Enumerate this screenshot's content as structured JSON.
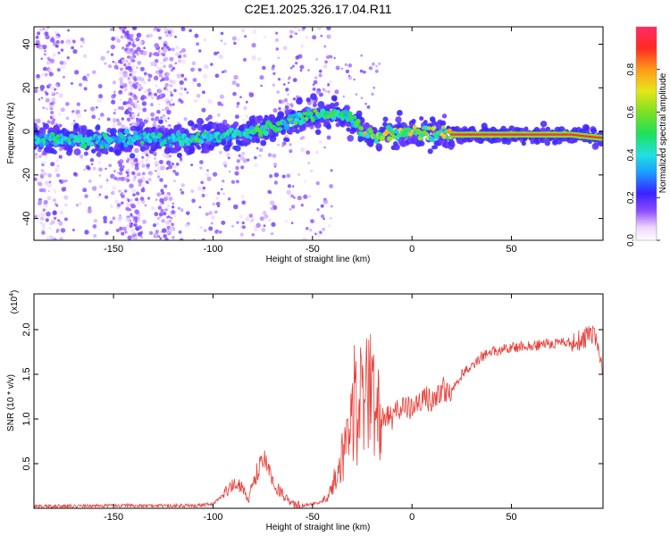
{
  "title": "C2E1.2025.326.17.04.R11",
  "chart_data": [
    {
      "type": "heatmap",
      "xlabel": "Height of straight line (km)",
      "ylabel": "Frequency (Hz)",
      "xlim": [
        -190,
        96
      ],
      "ylim": [
        -50,
        48
      ],
      "xticks": [
        -150,
        -100,
        -50,
        0,
        50
      ],
      "xtick_labels": [
        "-150",
        "-100",
        "-50",
        "0",
        "50"
      ],
      "yticks": [
        -40,
        -20,
        0,
        20,
        40
      ],
      "ytick_labels": [
        "-40",
        "-20",
        "0",
        "20",
        "40"
      ],
      "colorbar": {
        "label": "Normalized spectral amplitude",
        "range": [
          0,
          1
        ],
        "ticks": [
          0.0,
          0.2,
          0.4,
          0.6,
          0.8
        ],
        "tick_labels": [
          "0.0",
          "0.2",
          "0.4",
          "0.6",
          "0.8"
        ]
      },
      "ridge": {
        "x": [
          -190,
          -160,
          -130,
          -110,
          -95,
          -85,
          -75,
          -65,
          -57,
          -50,
          -42,
          -35,
          -28,
          -24,
          -20,
          -12,
          -5,
          0,
          10,
          20,
          40,
          60,
          80,
          90,
          96
        ],
        "freq": [
          -3,
          -4,
          -3,
          -4,
          -2,
          -1,
          1,
          3,
          6,
          7,
          8,
          7,
          4,
          0,
          -2,
          -1,
          0,
          0,
          -1,
          -1.5,
          -1.5,
          -1.5,
          -1.5,
          -2.5,
          -3
        ]
      }
    },
    {
      "type": "line",
      "xlabel": "Height of straight line (km)",
      "ylabel": "SNR (10 * v/v)",
      "y_scale_label": "(x10",
      "y_scale_exp": "4",
      "y_scale_close": ")",
      "xlim": [
        -190,
        96
      ],
      "ylim": [
        0,
        2.4
      ],
      "xticks": [
        -150,
        -100,
        -50,
        0,
        50
      ],
      "xtick_labels": [
        "-150",
        "-100",
        "-50",
        "0",
        "50"
      ],
      "yticks": [
        0.5,
        1.0,
        1.5,
        2.0
      ],
      "ytick_labels": [
        "0.5",
        "1.0",
        "1.5",
        "2.0"
      ],
      "series": [
        {
          "name": "SNR",
          "color": "#e8403a",
          "x": [
            -190,
            -150,
            -110,
            -100,
            -92,
            -88,
            -82,
            -78,
            -74,
            -70,
            -65,
            -60,
            -55,
            -50,
            -45,
            -40,
            -36,
            -32,
            -28,
            -25,
            -22,
            -19,
            -15,
            -10,
            -5,
            0,
            5,
            10,
            15,
            20,
            25,
            30,
            35,
            40,
            50,
            60,
            70,
            80,
            85,
            90,
            93,
            96
          ],
          "y": [
            0.02,
            0.03,
            0.03,
            0.05,
            0.2,
            0.3,
            0.12,
            0.4,
            0.55,
            0.3,
            0.15,
            0.04,
            0.03,
            0.05,
            0.08,
            0.25,
            0.5,
            0.8,
            1.05,
            0.9,
            1.25,
            1.0,
            1.05,
            1.0,
            1.15,
            1.1,
            1.25,
            1.2,
            1.35,
            1.3,
            1.5,
            1.6,
            1.7,
            1.75,
            1.8,
            1.82,
            1.84,
            1.86,
            1.88,
            1.95,
            1.9,
            1.55
          ]
        }
      ]
    }
  ]
}
